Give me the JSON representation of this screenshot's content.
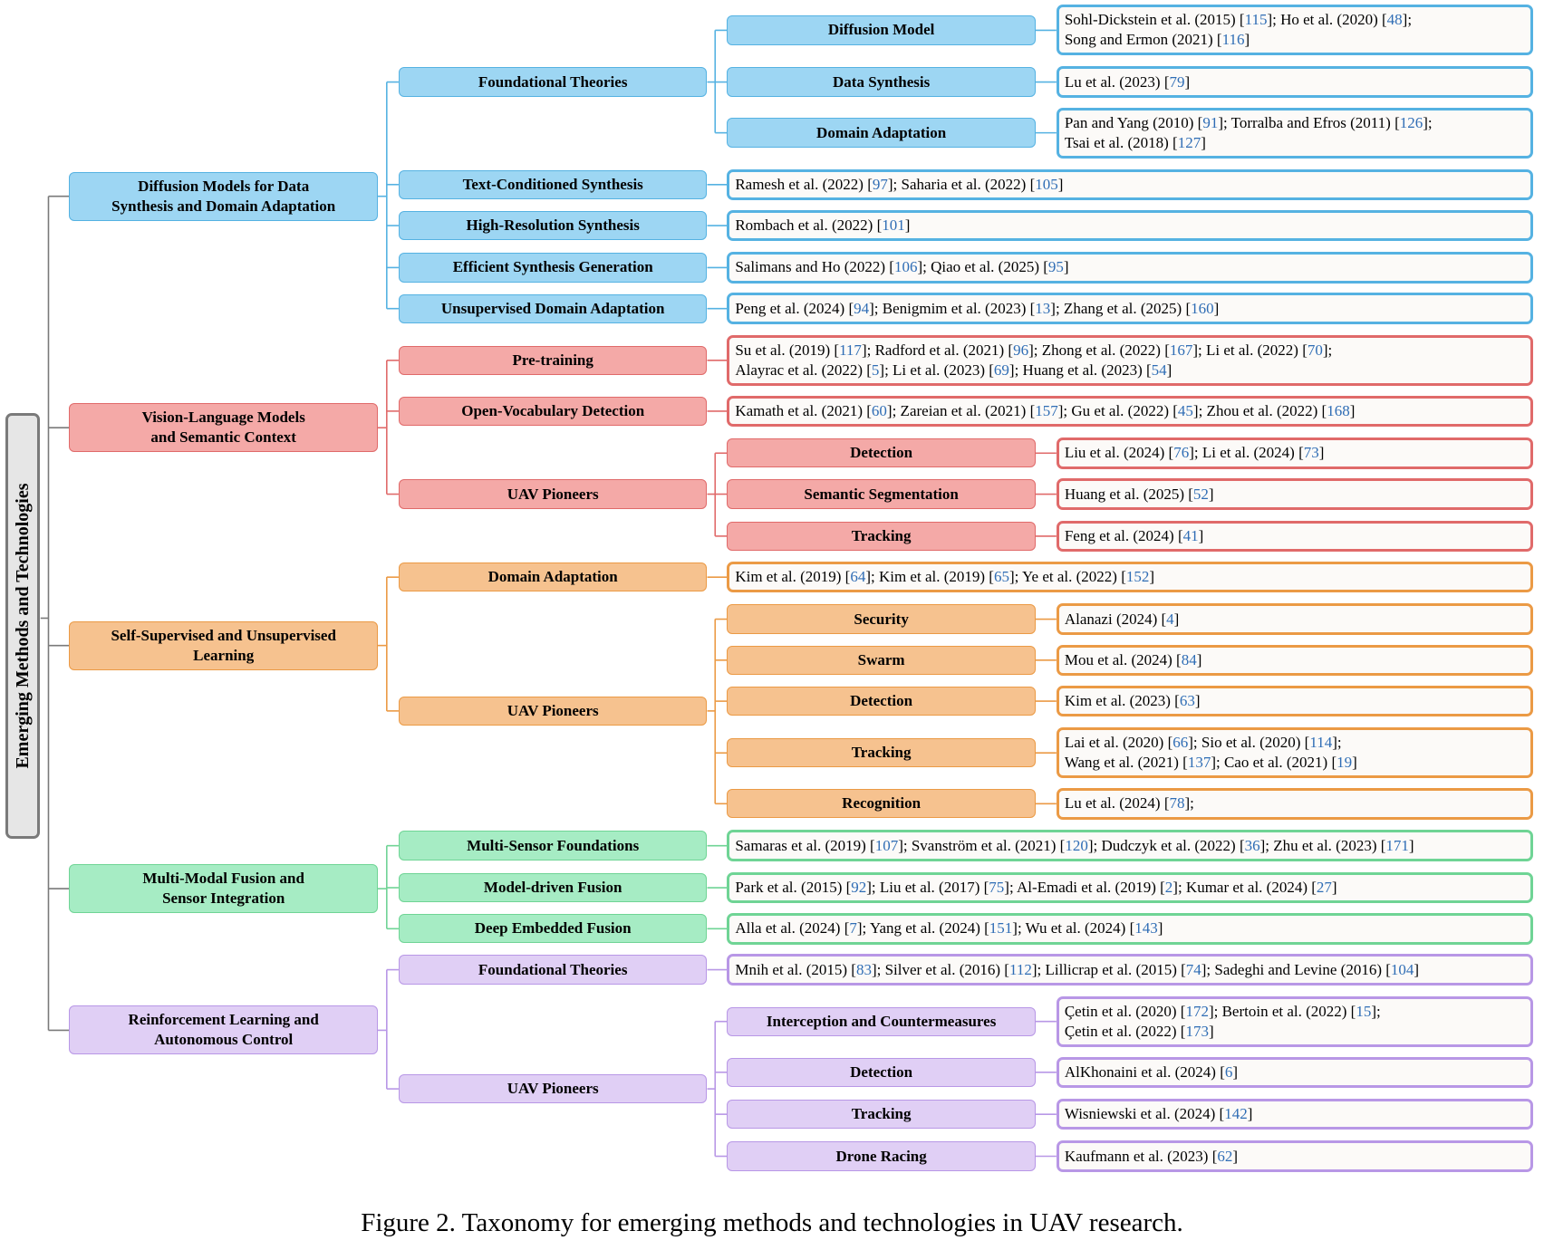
{
  "root": {
    "label": "Emerging Methods and Technologies"
  },
  "caption": "Figure 2. Taxonomy for emerging methods and technologies in UAV research.",
  "colors": {
    "blue": {
      "fill": "#9dd6f3",
      "border": "#55b2e2",
      "leaf": "#55b2e2"
    },
    "red": {
      "fill": "#f4a9a7",
      "border": "#e06a6a",
      "leaf": "#e06a6a"
    },
    "orange": {
      "fill": "#f6c28f",
      "border": "#eb9a45",
      "leaf": "#eb9a45"
    },
    "green": {
      "fill": "#a6ecc4",
      "border": "#6fd495",
      "leaf": "#6fd495"
    },
    "purple": {
      "fill": "#e0cff5",
      "border": "#b897e6",
      "leaf": "#b897e6"
    },
    "cite_color": "#2f6db5",
    "root_fill": "#e6e6e6",
    "root_border": "#7a7a7a"
  },
  "categories": [
    {
      "label_lines": [
        "Diffusion Models for Data",
        "Synthesis and Domain Adaptation"
      ],
      "color": "blue",
      "items": [
        {
          "label": "Foundational Theories",
          "children": [
            {
              "label": "Diffusion Model",
              "refs": [
                [
                  [
                    "Sohl-Dickstein et al. (2015) [",
                    0
                  ],
                  [
                    "115",
                    1
                  ],
                  [
                    "]; Ho et al. (2020) [",
                    0
                  ],
                  [
                    "48",
                    1
                  ],
                  [
                    "];",
                    0
                  ]
                ],
                [
                  [
                    "Song and Ermon (2021) [",
                    0
                  ],
                  [
                    "116",
                    1
                  ],
                  [
                    "]",
                    0
                  ]
                ]
              ]
            },
            {
              "label": "Data Synthesis",
              "refs": [
                [
                  [
                    "Lu et al. (2023) [",
                    0
                  ],
                  [
                    "79",
                    1
                  ],
                  [
                    "]",
                    0
                  ]
                ]
              ]
            },
            {
              "label": "Domain Adaptation",
              "refs": [
                [
                  [
                    "Pan and Yang (2010) [",
                    0
                  ],
                  [
                    "91",
                    1
                  ],
                  [
                    "]; Torralba and Efros (2011) [",
                    0
                  ],
                  [
                    "126",
                    1
                  ],
                  [
                    "];",
                    0
                  ]
                ],
                [
                  [
                    "Tsai et al. (2018) [",
                    0
                  ],
                  [
                    "127",
                    1
                  ],
                  [
                    "]",
                    0
                  ]
                ]
              ]
            }
          ]
        },
        {
          "label": "Text-Conditioned Synthesis",
          "refs": [
            [
              [
                "Ramesh et al. (2022) [",
                0
              ],
              [
                "97",
                1
              ],
              [
                "]; Saharia et al. (2022) [",
                0
              ],
              [
                "105",
                1
              ],
              [
                "]",
                0
              ]
            ]
          ]
        },
        {
          "label": "High-Resolution Synthesis",
          "refs": [
            [
              [
                "Rombach et al. (2022) [",
                0
              ],
              [
                "101",
                1
              ],
              [
                "]",
                0
              ]
            ]
          ]
        },
        {
          "label": "Efficient Synthesis Generation",
          "refs": [
            [
              [
                "Salimans and Ho (2022) [",
                0
              ],
              [
                "106",
                1
              ],
              [
                "]; Qiao et al. (2025) [",
                0
              ],
              [
                "95",
                1
              ],
              [
                "]",
                0
              ]
            ]
          ]
        },
        {
          "label": "Unsupervised Domain Adaptation",
          "refs": [
            [
              [
                "Peng et al. (2024) [",
                0
              ],
              [
                "94",
                1
              ],
              [
                "]; Benigmim et al. (2023) [",
                0
              ],
              [
                "13",
                1
              ],
              [
                "]; Zhang et al. (2025) [",
                0
              ],
              [
                "160",
                1
              ],
              [
                "]",
                0
              ]
            ]
          ]
        }
      ]
    },
    {
      "label_lines": [
        "Vision-Language Models",
        "and Semantic Context"
      ],
      "color": "red",
      "items": [
        {
          "label": "Pre-training",
          "refs": [
            [
              [
                "Su et al. (2019) [",
                0
              ],
              [
                "117",
                1
              ],
              [
                "]; Radford et al. (2021) [",
                0
              ],
              [
                "96",
                1
              ],
              [
                "]; Zhong et al. (2022) [",
                0
              ],
              [
                "167",
                1
              ],
              [
                "]; Li et al. (2022) [",
                0
              ],
              [
                "70",
                1
              ],
              [
                "];",
                0
              ]
            ],
            [
              [
                "Alayrac et al. (2022) [",
                0
              ],
              [
                "5",
                1
              ],
              [
                "]; Li et al. (2023) [",
                0
              ],
              [
                "69",
                1
              ],
              [
                "]; Huang et al. (2023) [",
                0
              ],
              [
                "54",
                1
              ],
              [
                "]",
                0
              ]
            ]
          ]
        },
        {
          "label": "Open-Vocabulary Detection",
          "refs": [
            [
              [
                "Kamath et al. (2021) [",
                0
              ],
              [
                "60",
                1
              ],
              [
                "]; Zareian et al. (2021) [",
                0
              ],
              [
                "157",
                1
              ],
              [
                "]; Gu et al. (2022) [",
                0
              ],
              [
                "45",
                1
              ],
              [
                "]; Zhou et al. (2022) [",
                0
              ],
              [
                "168",
                1
              ],
              [
                "]",
                0
              ]
            ]
          ]
        },
        {
          "label": "UAV Pioneers",
          "children": [
            {
              "label": "Detection",
              "refs": [
                [
                  [
                    "Liu et al. (2024) [",
                    0
                  ],
                  [
                    "76",
                    1
                  ],
                  [
                    "]; Li et al. (2024) [",
                    0
                  ],
                  [
                    "73",
                    1
                  ],
                  [
                    "]",
                    0
                  ]
                ]
              ]
            },
            {
              "label": "Semantic Segmentation",
              "refs": [
                [
                  [
                    "Huang et al. (2025) [",
                    0
                  ],
                  [
                    "52",
                    1
                  ],
                  [
                    "]",
                    0
                  ]
                ]
              ]
            },
            {
              "label": "Tracking",
              "refs": [
                [
                  [
                    "Feng et al. (2024) [",
                    0
                  ],
                  [
                    "41",
                    1
                  ],
                  [
                    "]",
                    0
                  ]
                ]
              ]
            }
          ]
        }
      ]
    },
    {
      "label_lines": [
        "Self-Supervised and Unsupervised",
        "Learning"
      ],
      "color": "orange",
      "items": [
        {
          "label": "Domain Adaptation",
          "refs": [
            [
              [
                "Kim et al. (2019) [",
                0
              ],
              [
                "64",
                1
              ],
              [
                "]; Kim et al. (2019) [",
                0
              ],
              [
                "65",
                1
              ],
              [
                "]; Ye et al. (2022) [",
                0
              ],
              [
                "152",
                1
              ],
              [
                "]",
                0
              ]
            ]
          ]
        },
        {
          "label": "UAV Pioneers",
          "children": [
            {
              "label": "Security",
              "refs": [
                [
                  [
                    "Alanazi (2024) [",
                    0
                  ],
                  [
                    "4",
                    1
                  ],
                  [
                    "]",
                    0
                  ]
                ]
              ]
            },
            {
              "label": "Swarm",
              "refs": [
                [
                  [
                    "Mou et al. (2024) [",
                    0
                  ],
                  [
                    "84",
                    1
                  ],
                  [
                    "]",
                    0
                  ]
                ]
              ]
            },
            {
              "label": "Detection",
              "refs": [
                [
                  [
                    "Kim et al. (2023) [",
                    0
                  ],
                  [
                    "63",
                    1
                  ],
                  [
                    "]",
                    0
                  ]
                ]
              ]
            },
            {
              "label": "Tracking",
              "refs": [
                [
                  [
                    "Lai et al. (2020) [",
                    0
                  ],
                  [
                    "66",
                    1
                  ],
                  [
                    "]; Sio et al. (2020) [",
                    0
                  ],
                  [
                    "114",
                    1
                  ],
                  [
                    "];",
                    0
                  ]
                ],
                [
                  [
                    "Wang et al. (2021) [",
                    0
                  ],
                  [
                    "137",
                    1
                  ],
                  [
                    "]; Cao et al. (2021) [",
                    0
                  ],
                  [
                    "19",
                    1
                  ],
                  [
                    "]",
                    0
                  ]
                ]
              ]
            },
            {
              "label": "Recognition",
              "refs": [
                [
                  [
                    "Lu et al. (2024) [",
                    0
                  ],
                  [
                    "78",
                    1
                  ],
                  [
                    "];",
                    0
                  ]
                ]
              ]
            }
          ]
        }
      ]
    },
    {
      "label_lines": [
        "Multi-Modal Fusion and",
        "Sensor Integration"
      ],
      "color": "green",
      "items": [
        {
          "label": "Multi-Sensor Foundations",
          "refs": [
            [
              [
                "Samaras et al. (2019) [",
                0
              ],
              [
                "107",
                1
              ],
              [
                "]; Svanström et al. (2021) [",
                0
              ],
              [
                "120",
                1
              ],
              [
                "]; Dudczyk et al. (2022) [",
                0
              ],
              [
                "36",
                1
              ],
              [
                "]; Zhu et al. (2023) [",
                0
              ],
              [
                "171",
                1
              ],
              [
                "]",
                0
              ]
            ]
          ]
        },
        {
          "label": "Model-driven Fusion",
          "refs": [
            [
              [
                "Park et al. (2015) [",
                0
              ],
              [
                "92",
                1
              ],
              [
                "]; Liu et al. (2017) [",
                0
              ],
              [
                "75",
                1
              ],
              [
                "]; Al-Emadi et al. (2019) [",
                0
              ],
              [
                "2",
                1
              ],
              [
                "]; Kumar et al. (2024) [",
                0
              ],
              [
                "27",
                1
              ],
              [
                "]",
                0
              ]
            ]
          ]
        },
        {
          "label": "Deep Embedded Fusion",
          "refs": [
            [
              [
                "Alla et al. (2024) [",
                0
              ],
              [
                "7",
                1
              ],
              [
                "]; Yang et al. (2024) [",
                0
              ],
              [
                "151",
                1
              ],
              [
                "]; Wu et al. (2024) [",
                0
              ],
              [
                "143",
                1
              ],
              [
                "]",
                0
              ]
            ]
          ]
        }
      ]
    },
    {
      "label_lines": [
        "Reinforcement Learning and",
        "Autonomous Control"
      ],
      "color": "purple",
      "items": [
        {
          "label": "Foundational Theories",
          "refs": [
            [
              [
                "Mnih et al. (2015) [",
                0
              ],
              [
                "83",
                1
              ],
              [
                "]; Silver et al. (2016) [",
                0
              ],
              [
                "112",
                1
              ],
              [
                "]; Lillicrap et al. (2015) [",
                0
              ],
              [
                "74",
                1
              ],
              [
                "]; Sadeghi and Levine (2016) [",
                0
              ],
              [
                "104",
                1
              ],
              [
                "]",
                0
              ]
            ]
          ]
        },
        {
          "label": "UAV Pioneers",
          "children": [
            {
              "label": "Interception and Countermeasures",
              "refs": [
                [
                  [
                    "Çetin et al. (2020) [",
                    0
                  ],
                  [
                    "172",
                    1
                  ],
                  [
                    "]; Bertoin et al. (2022) [",
                    0
                  ],
                  [
                    "15",
                    1
                  ],
                  [
                    "];",
                    0
                  ]
                ],
                [
                  [
                    "Çetin et al. (2022) [",
                    0
                  ],
                  [
                    "173",
                    1
                  ],
                  [
                    "]",
                    0
                  ]
                ]
              ]
            },
            {
              "label": "Detection",
              "refs": [
                [
                  [
                    "AlKhonaini et al. (2024) [",
                    0
                  ],
                  [
                    "6",
                    1
                  ],
                  [
                    "]",
                    0
                  ]
                ]
              ]
            },
            {
              "label": "Tracking",
              "refs": [
                [
                  [
                    "Wisniewski et al. (2024) [",
                    0
                  ],
                  [
                    "142",
                    1
                  ],
                  [
                    "]",
                    0
                  ]
                ]
              ]
            },
            {
              "label": "Drone Racing",
              "refs": [
                [
                  [
                    "Kaufmann et al. (2023) [",
                    0
                  ],
                  [
                    "62",
                    1
                  ],
                  [
                    "]",
                    0
                  ]
                ]
              ]
            }
          ]
        }
      ]
    }
  ]
}
